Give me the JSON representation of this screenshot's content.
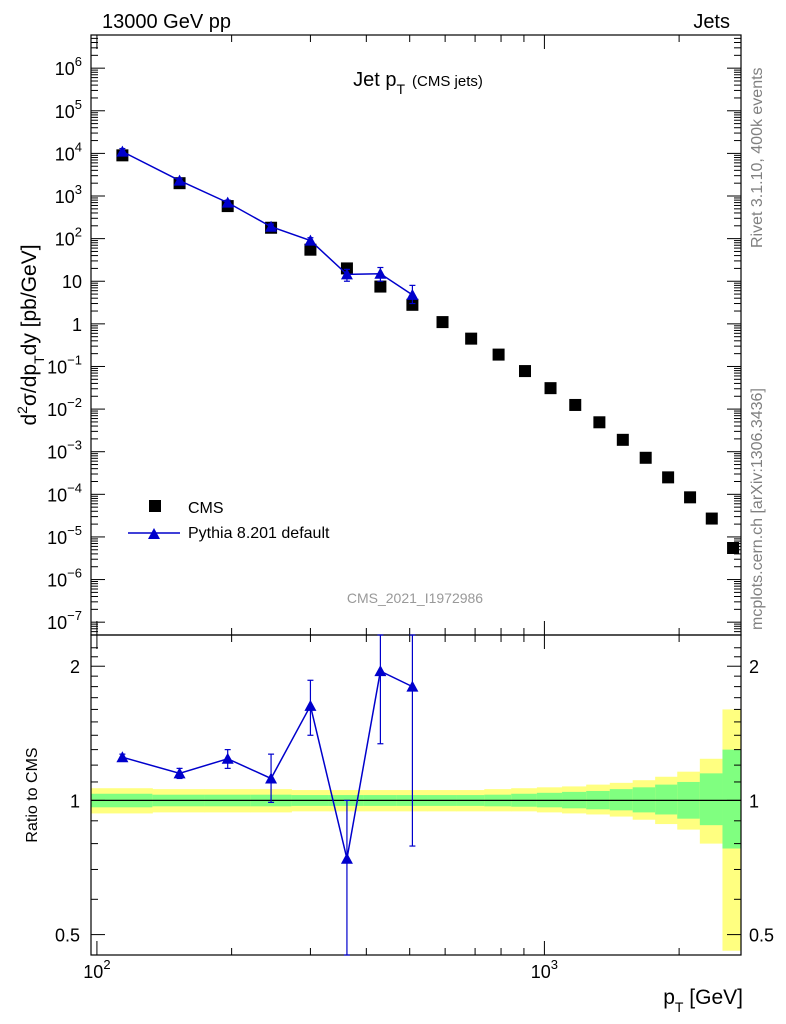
{
  "header": {
    "left": "13000 GeV pp",
    "right": "Jets"
  },
  "side_labels": {
    "top": "Rivet 3.1.10,  400k events",
    "bottom": "mcplots.cern.ch [arXiv:1306.3436]"
  },
  "chart_data": [
    {
      "type": "scatter",
      "panel": "main",
      "title": "Jet p",
      "title_sub": "T",
      "title_note": "(CMS jets)",
      "watermark": "CMS_2021_I1972986",
      "ylabel": "d²σ/dp_T dy [pb/GeV]",
      "y_scale": "log",
      "ylim": [
        5e-08,
        6000000.0
      ],
      "xlim": [
        97,
        2750
      ],
      "x_scale": "log",
      "y_ticks": [
        {
          "v": 1000000.0,
          "m": "10",
          "e": "6"
        },
        {
          "v": 100000.0,
          "m": "10",
          "e": "5"
        },
        {
          "v": 10000.0,
          "m": "10",
          "e": "4"
        },
        {
          "v": 1000.0,
          "m": "10",
          "e": "3"
        },
        {
          "v": 100.0,
          "m": "10",
          "e": "2"
        },
        {
          "v": 10,
          "m": "10",
          "e": ""
        },
        {
          "v": 1,
          "m": "1",
          "e": ""
        },
        {
          "v": 0.1,
          "m": "10",
          "e": "−1"
        },
        {
          "v": 0.01,
          "m": "10",
          "e": "−2"
        },
        {
          "v": 0.001,
          "m": "10",
          "e": "−3"
        },
        {
          "v": 0.0001,
          "m": "10",
          "e": "−4"
        },
        {
          "v": 1e-05,
          "m": "10",
          "e": "−5"
        },
        {
          "v": 1e-06,
          "m": "10",
          "e": "−6"
        },
        {
          "v": 1e-07,
          "m": "10",
          "e": "−7"
        }
      ],
      "legend_position": "bottom-left",
      "series": [
        {
          "name": "CMS",
          "marker": "square",
          "color": "#000000",
          "x": [
            114,
            153,
            196,
            245,
            300,
            362,
            430,
            507,
            592,
            686,
            790,
            905,
            1032,
            1172,
            1327,
            1497,
            1684,
            1890,
            2116,
            2366,
            2640
          ],
          "y": [
            9000,
            2000,
            580,
            180,
            55,
            20,
            7.5,
            2.8,
            1.1,
            0.45,
            0.19,
            0.078,
            0.031,
            0.0125,
            0.0049,
            0.0019,
            0.00072,
            0.00025,
            8.5e-05,
            2.7e-05,
            5.5e-06
          ]
        },
        {
          "name": "Pythia 8.201 default",
          "marker": "triangle",
          "color": "#0000cc",
          "x": [
            114,
            153,
            196,
            245,
            300,
            362,
            430,
            507
          ],
          "y": [
            11000,
            2300,
            700,
            190,
            90,
            14.5,
            15,
            4.8
          ],
          "err_lo": [
            9500,
            2000,
            600,
            160,
            75,
            10,
            10,
            3
          ],
          "err_hi": [
            13000,
            2600,
            800,
            220,
            105,
            19,
            21,
            8
          ]
        }
      ]
    },
    {
      "type": "line",
      "panel": "ratio",
      "ylabel": "Ratio to CMS",
      "xlabel": "p_T [GeV]",
      "ylim": [
        0.45,
        2.35
      ],
      "y_ticks": [
        {
          "v": 0.5,
          "label": "0.5"
        },
        {
          "v": 1,
          "label": "1"
        },
        {
          "v": 2,
          "label": "2"
        }
      ],
      "x_ticks": [
        {
          "v": 100,
          "m": "10",
          "e": "2"
        },
        {
          "v": 1000,
          "m": "10",
          "e": "3"
        }
      ],
      "reference_line": 1,
      "band_edges": [
        97,
        133,
        174,
        220,
        272,
        330,
        395,
        468,
        548,
        636,
        734,
        843,
        962,
        1095,
        1240,
        1400,
        1575,
        1768,
        1981,
        2225,
        2500,
        2750
      ],
      "band_yellow_lo": [
        0.935,
        0.94,
        0.94,
        0.94,
        0.945,
        0.945,
        0.945,
        0.945,
        0.945,
        0.945,
        0.945,
        0.945,
        0.94,
        0.935,
        0.93,
        0.92,
        0.905,
        0.885,
        0.86,
        0.8,
        0.46
      ],
      "band_yellow_hi": [
        1.065,
        1.06,
        1.06,
        1.06,
        1.055,
        1.055,
        1.055,
        1.055,
        1.055,
        1.055,
        1.06,
        1.065,
        1.07,
        1.075,
        1.085,
        1.095,
        1.11,
        1.13,
        1.16,
        1.24,
        1.6
      ],
      "band_green_lo": [
        0.965,
        0.97,
        0.97,
        0.97,
        0.972,
        0.972,
        0.972,
        0.972,
        0.972,
        0.972,
        0.97,
        0.968,
        0.965,
        0.96,
        0.955,
        0.95,
        0.94,
        0.93,
        0.91,
        0.88,
        0.78
      ],
      "band_green_hi": [
        1.035,
        1.03,
        1.03,
        1.03,
        1.028,
        1.028,
        1.028,
        1.028,
        1.028,
        1.028,
        1.03,
        1.035,
        1.04,
        1.045,
        1.05,
        1.06,
        1.07,
        1.085,
        1.1,
        1.15,
        1.3
      ],
      "band_colors": {
        "yellow": "#ffff80",
        "green": "#80ff80"
      },
      "series": [
        {
          "name": "Pythia 8.201 default",
          "color": "#0000cc",
          "x": [
            114,
            153,
            196,
            245,
            300,
            362,
            430,
            507
          ],
          "y": [
            1.25,
            1.15,
            1.24,
            1.12,
            1.63,
            0.74,
            1.95,
            1.8
          ],
          "err_lo": [
            1.23,
            1.12,
            1.18,
            0.99,
            1.4,
            0.42,
            1.34,
            0.79
          ],
          "err_hi": [
            1.27,
            1.18,
            1.3,
            1.27,
            1.86,
            1.0,
            2.4,
            2.4
          ]
        }
      ]
    }
  ]
}
